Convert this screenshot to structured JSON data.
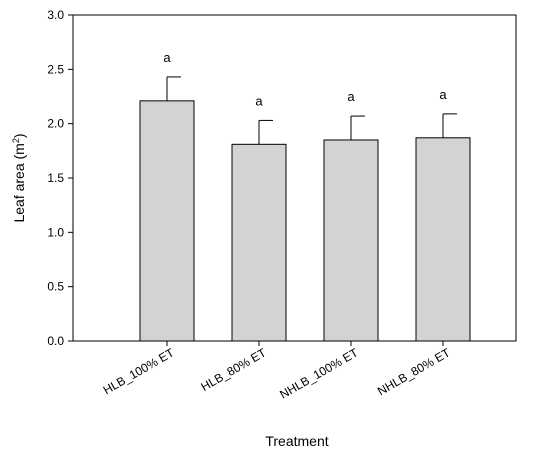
{
  "chart_data": {
    "type": "bar",
    "categories": [
      "HLB_100% ET",
      "HLB_80% ET",
      "NHLB_100% ET",
      "NHLB_80% ET"
    ],
    "values": [
      2.21,
      1.81,
      1.85,
      1.87
    ],
    "errors": [
      0.22,
      0.22,
      0.22,
      0.22
    ],
    "significance": [
      "a",
      "a",
      "a",
      "a"
    ],
    "xlabel": "Treatment",
    "ylabel": "Leaf area (m",
    "ylabel_sup": "2",
    "ylabel_end": ")",
    "ylim": [
      0,
      3.0
    ],
    "yticks": [
      "0.0",
      "0.5",
      "1.0",
      "1.5",
      "2.0",
      "2.5",
      "3.0"
    ],
    "grid": false,
    "colors": {
      "bar_fill": "#d3d3d3",
      "bar_stroke": "#000000"
    }
  }
}
